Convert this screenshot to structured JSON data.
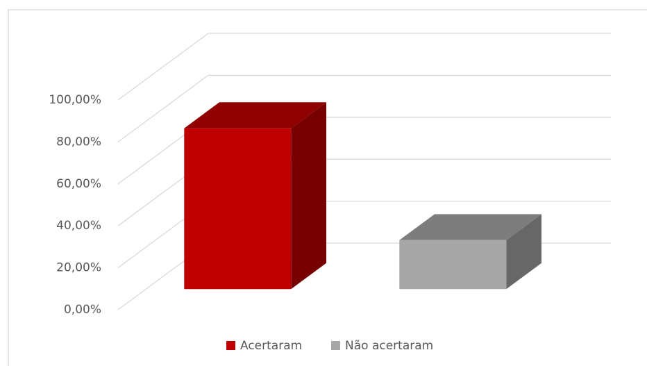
{
  "chart_data": {
    "type": "bar3d",
    "categories": [
      null
    ],
    "series": [
      {
        "name": "Acertaram",
        "color": "#c00000",
        "values": [
          76.67
        ]
      },
      {
        "name": "Não acertaram",
        "color": "#a6a6a6",
        "values": [
          23.33
        ]
      }
    ],
    "ylim": [
      0,
      100
    ],
    "yticks": [
      {
        "value": 0,
        "label": "0,00%"
      },
      {
        "value": 20,
        "label": "20,00%"
      },
      {
        "value": 40,
        "label": "40,00%"
      },
      {
        "value": 60,
        "label": "60,00%"
      },
      {
        "value": 80,
        "label": "80,00%"
      },
      {
        "value": 100,
        "label": "100,00%"
      }
    ],
    "grid": true,
    "legend": "bottom"
  }
}
